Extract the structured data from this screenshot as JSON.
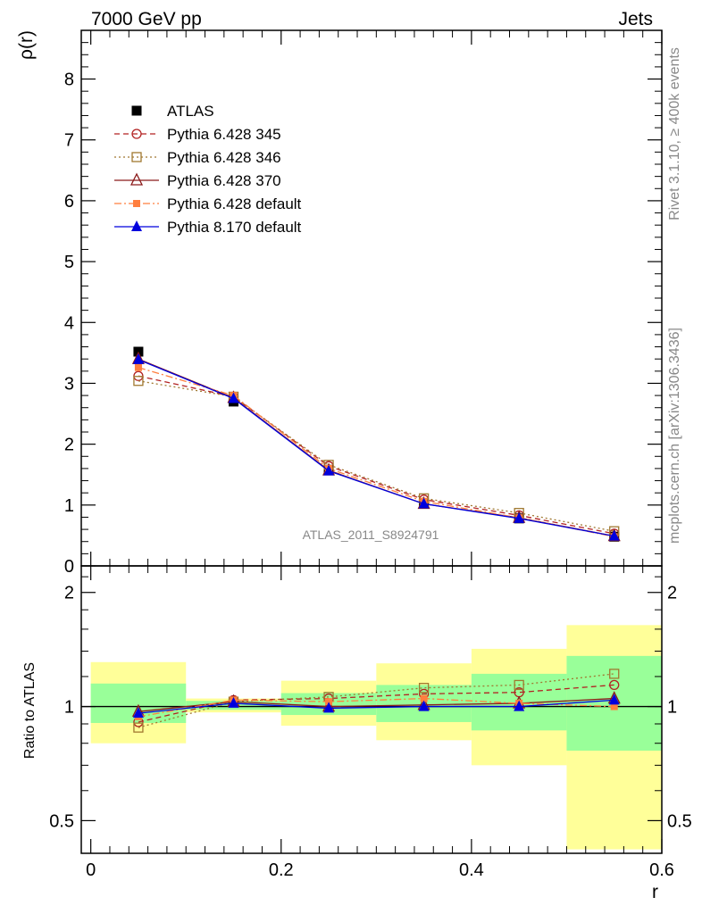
{
  "header": {
    "energy_label": "7000 GeV pp",
    "process_label": "Jets",
    "rivet_label": "Rivet 3.1.10, ≥ 400k events",
    "site_label": "mcplots.cern.ch [arXiv:1306.3436]",
    "analysis_label": "ATLAS_2011_S8924791"
  },
  "chart_data": [
    {
      "type": "line",
      "title": "",
      "xlabel": "",
      "ylabel": "ρ(r)",
      "xlim": [
        -0.01,
        0.6
      ],
      "ylim": [
        0,
        8.8
      ],
      "yticks": [
        "0",
        "1",
        "2",
        "3",
        "4",
        "5",
        "6",
        "7",
        "8"
      ],
      "grid": false,
      "legend_position": "top-left",
      "x": [
        0.05,
        0.15,
        0.25,
        0.35,
        0.45,
        0.55
      ],
      "series": [
        {
          "name": "ATLAS",
          "color": "#000000",
          "marker": "filled-square",
          "line": "none",
          "values": [
            3.52,
            2.7,
            1.58,
            1.02,
            0.78,
            0.48
          ]
        },
        {
          "name": "Pythia 6.428 345",
          "color": "#b22222",
          "marker": "open-circle",
          "line": "dashed",
          "values": [
            3.12,
            2.78,
            1.64,
            1.09,
            0.83,
            0.53
          ]
        },
        {
          "name": "Pythia 6.428 346",
          "color": "#a07830",
          "marker": "open-square",
          "line": "dotted",
          "values": [
            3.04,
            2.78,
            1.66,
            1.11,
            0.87,
            0.57
          ]
        },
        {
          "name": "Pythia 6.428 370",
          "color": "#8b1a1a",
          "marker": "open-triangle",
          "line": "solid",
          "values": [
            3.4,
            2.76,
            1.57,
            1.02,
            0.79,
            0.49
          ]
        },
        {
          "name": "Pythia 6.428 default",
          "color": "#ff7f3f",
          "marker": "filled-square-small",
          "line": "dashdot",
          "values": [
            3.26,
            2.8,
            1.6,
            1.06,
            0.79,
            0.48
          ]
        },
        {
          "name": "Pythia 8.170 default",
          "color": "#0000dd",
          "marker": "filled-triangle",
          "line": "solid",
          "values": [
            3.39,
            2.75,
            1.56,
            1.02,
            0.78,
            0.49
          ]
        }
      ]
    },
    {
      "type": "line",
      "title": "",
      "xlabel": "r",
      "ylabel": "Ratio to ATLAS",
      "xlim": [
        -0.01,
        0.6
      ],
      "ylim": [
        0.41,
        2.35
      ],
      "yscale": "log",
      "xticks": [
        "0",
        "0.2",
        "0.4",
        "0.6"
      ],
      "yticks": [
        "0.5",
        "1",
        "2"
      ],
      "grid": false,
      "reference_line": 1,
      "uncertainty_bands": [
        {
          "x_range": [
            0.0,
            0.1
          ],
          "inner": [
            0.905,
            1.15
          ],
          "outer": [
            0.8,
            1.31
          ]
        },
        {
          "x_range": [
            0.1,
            0.2
          ],
          "inner": [
            0.98,
            1.035
          ],
          "outer": [
            0.965,
            1.05
          ]
        },
        {
          "x_range": [
            0.2,
            0.3
          ],
          "inner": [
            0.95,
            1.085
          ],
          "outer": [
            0.89,
            1.17
          ]
        },
        {
          "x_range": [
            0.3,
            0.4
          ],
          "inner": [
            0.91,
            1.14
          ],
          "outer": [
            0.815,
            1.3
          ]
        },
        {
          "x_range": [
            0.4,
            0.5
          ],
          "inner": [
            0.865,
            1.22
          ],
          "outer": [
            0.7,
            1.42
          ]
        },
        {
          "x_range": [
            0.5,
            0.6
          ],
          "inner": [
            0.765,
            1.36
          ],
          "outer": [
            0.42,
            1.64
          ]
        }
      ],
      "band_colors": {
        "inner": "#99ff99",
        "outer": "#ffff99"
      },
      "x": [
        0.05,
        0.15,
        0.25,
        0.35,
        0.45,
        0.55
      ],
      "series": [
        {
          "name": "Pythia 6.428 345",
          "color": "#b22222",
          "marker": "open-circle",
          "line": "dashed",
          "values": [
            0.91,
            1.04,
            1.05,
            1.08,
            1.09,
            1.14
          ]
        },
        {
          "name": "Pythia 6.428 346",
          "color": "#a07830",
          "marker": "open-square",
          "line": "dotted",
          "values": [
            0.88,
            1.03,
            1.06,
            1.12,
            1.14,
            1.22
          ]
        },
        {
          "name": "Pythia 6.428 370",
          "color": "#8b1a1a",
          "marker": "open-triangle",
          "line": "solid",
          "values": [
            0.97,
            1.03,
            1.0,
            1.01,
            1.02,
            1.05
          ]
        },
        {
          "name": "Pythia 6.428 default",
          "color": "#ff7f3f",
          "marker": "filled-square-small",
          "line": "dashdot",
          "values": [
            0.94,
            1.04,
            1.03,
            1.05,
            1.02,
            1.0
          ]
        },
        {
          "name": "Pythia 8.170 default",
          "color": "#0000dd",
          "marker": "filled-triangle",
          "line": "solid",
          "values": [
            0.96,
            1.02,
            0.99,
            1.0,
            1.0,
            1.04
          ]
        }
      ]
    }
  ]
}
